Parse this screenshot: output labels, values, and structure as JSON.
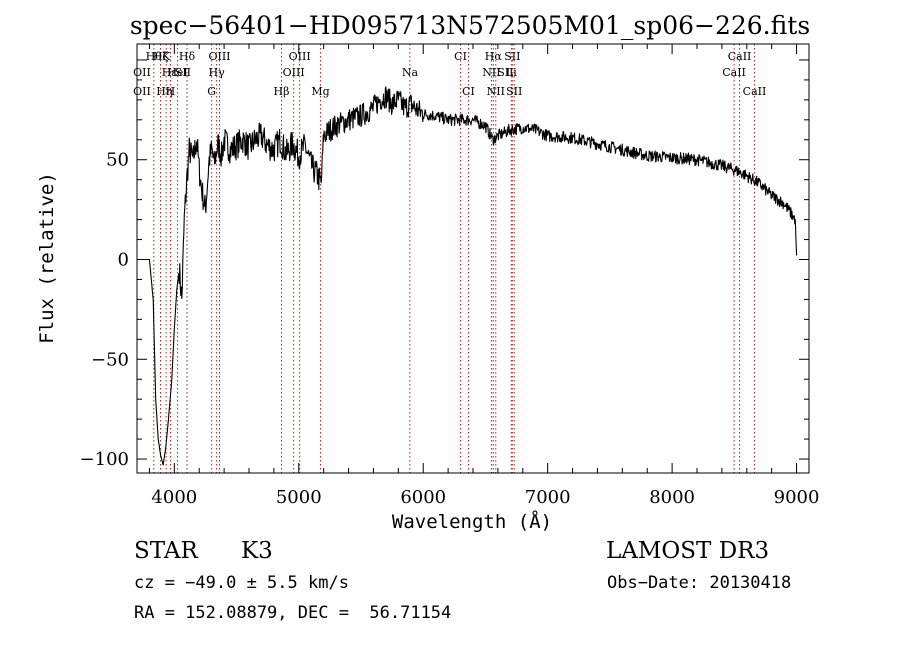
{
  "chart_data": {
    "type": "line",
    "title": "spec−56401−HD095713N572505M01_sp06−226.fits",
    "xlabel": "Wavelength (Å)",
    "ylabel": "Flux (relative)",
    "xlim": [
      3700,
      9100
    ],
    "ylim": [
      -107,
      108
    ],
    "x_ticks": [
      4000,
      5000,
      6000,
      7000,
      8000,
      9000
    ],
    "y_ticks": [
      -100,
      -50,
      0,
      50
    ],
    "y_tick_labels": [
      "−100",
      "−50",
      "0",
      "50"
    ],
    "grid": false,
    "line_color": "#000000",
    "series": [
      {
        "x": [
          3700,
          3800,
          3830,
          3850,
          3870,
          3890,
          3910,
          3930,
          3950,
          3980,
          4000,
          4020,
          4040,
          4060,
          4080,
          4100,
          4120,
          4150,
          4180,
          4200,
          4220,
          4250,
          4280,
          4300,
          4320,
          4350,
          4380,
          4400,
          4450,
          4500,
          4550,
          4600,
          4650,
          4700,
          4750,
          4800,
          4850,
          4900,
          4950,
          5000,
          5050,
          5100,
          5150,
          5180,
          5200,
          5250,
          5300,
          5400,
          5500,
          5600,
          5650,
          5700,
          5750,
          5800,
          5850,
          5900,
          5950,
          6000,
          6100,
          6200,
          6300,
          6400,
          6500,
          6560,
          6600,
          6700,
          6800,
          6900,
          7000,
          7200,
          7400,
          7600,
          7800,
          8000,
          8200,
          8400,
          8500,
          8600,
          8700,
          8800,
          8900,
          8990,
          9000
        ],
        "y": [
          0,
          0,
          -20,
          -70,
          -90,
          -98,
          -103,
          -95,
          -82,
          -60,
          -35,
          -15,
          -5,
          -20,
          20,
          40,
          55,
          50,
          60,
          45,
          35,
          25,
          50,
          55,
          48,
          58,
          52,
          60,
          55,
          57,
          60,
          56,
          60,
          62,
          57,
          55,
          60,
          53,
          58,
          52,
          57,
          47,
          42,
          38,
          62,
          65,
          67,
          70,
          72,
          76,
          80,
          82,
          78,
          80,
          76,
          78,
          75,
          73,
          72,
          70,
          70,
          70,
          67,
          60,
          62,
          65,
          66,
          65,
          62,
          61,
          58,
          55,
          52,
          51,
          50,
          47,
          45,
          42,
          38,
          32,
          28,
          20,
          2
        ]
      }
    ],
    "line_markers": [
      {
        "x": 3835,
        "label": "Hθ",
        "row": 1
      },
      {
        "x": 3889,
        "label": "Hζ",
        "row": 1
      },
      {
        "x": 3934,
        "label": "K",
        "row": 1
      },
      {
        "x": 3969,
        "label": "H",
        "row": 3
      },
      {
        "x": 4026,
        "label": "HeI",
        "row": 2
      },
      {
        "x": 4102,
        "label": "Hδ",
        "row": 1
      },
      {
        "x": 4300,
        "label": "G",
        "row": 3
      },
      {
        "x": 4340,
        "label": "Hγ",
        "row": 2
      },
      {
        "x": 4363,
        "label": "OIII",
        "row": 1
      },
      {
        "x": 4861,
        "label": "Hβ",
        "row": 3
      },
      {
        "x": 4959,
        "label": "OIII",
        "row": 2
      },
      {
        "x": 5007,
        "label": "OIII",
        "row": 1
      },
      {
        "x": 5175,
        "label": "Mg",
        "row": 3
      },
      {
        "x": 5893,
        "label": "Na",
        "row": 2
      },
      {
        "x": 6300,
        "label": "CI",
        "row": 1
      },
      {
        "x": 6364,
        "label": "CI",
        "row": 3
      },
      {
        "x": 6548,
        "label": "NII",
        "row": 2
      },
      {
        "x": 6563,
        "label": "Hα",
        "row": 1
      },
      {
        "x": 6583,
        "label": "NII",
        "row": 3
      },
      {
        "x": 6708,
        "label": "Li",
        "row": 2
      },
      {
        "x": 6716,
        "label": "SII",
        "row": 1
      },
      {
        "x": 6731,
        "label": "SII",
        "row": 3
      },
      {
        "x": 8498,
        "label": "CaII",
        "row": 2
      },
      {
        "x": 8542,
        "label": "CaII",
        "row": 1
      },
      {
        "x": 8662,
        "label": "CaII",
        "row": 3
      }
    ],
    "extra_top_labels": [
      {
        "x": 3740,
        "label": "OII",
        "row": 2
      },
      {
        "x": 3740,
        "label": "OII",
        "row": 3
      },
      {
        "x": 3960,
        "label": "Hε",
        "row": 2
      },
      {
        "x": 4069,
        "label": "SII",
        "row": 2
      },
      {
        "x": 3920,
        "label": "Hη",
        "row": 3
      },
      {
        "x": 6660,
        "label": "SII",
        "row": 2
      }
    ],
    "marker_color": "#b22222"
  },
  "info": {
    "object_class": "STAR",
    "subclass": "K3",
    "survey": "LAMOST DR3",
    "cz": "cz = −49.0 ± 5.5 km/s",
    "obs_date": "Obs−Date: 20130418",
    "coords": "RA = 152.08879, DEC =  56.71154"
  }
}
